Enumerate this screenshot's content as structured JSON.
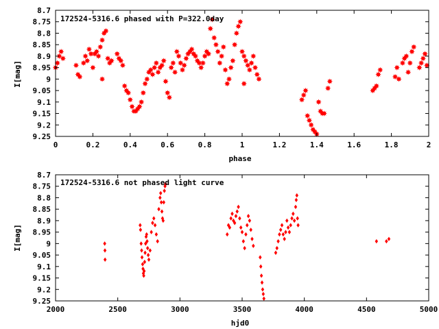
{
  "colors": {
    "series": "#ff0000",
    "axis": "#000000",
    "background": "#ffffff"
  },
  "chart_data": [
    {
      "type": "scatter",
      "title": "172524-5316.6 phased with P=322.0day",
      "xlabel": "phase",
      "ylabel": "I[mag]",
      "xlim": [
        0,
        2
      ],
      "ylim": [
        9.25,
        8.7
      ],
      "y_inverted": true,
      "grid": false,
      "marker": "star",
      "x_ticks": [
        "0",
        "0.2",
        "0.4",
        "0.6",
        "0.8",
        "1",
        "1.2",
        "1.4",
        "1.6",
        "1.8",
        "2"
      ],
      "y_ticks": [
        "8.7",
        "8.75",
        "8.8",
        "8.85",
        "8.9",
        "8.95",
        "9",
        "9.05",
        "9.1",
        "9.15",
        "9.2",
        "9.25"
      ],
      "series": [
        {
          "points": [
            [
              0.0,
              8.95
            ],
            [
              0.01,
              8.93
            ],
            [
              0.02,
              8.9
            ],
            [
              0.03,
              8.88
            ],
            [
              0.04,
              8.91
            ],
            [
              0.11,
              8.94
            ],
            [
              0.12,
              8.98
            ],
            [
              0.13,
              8.99
            ],
            [
              0.15,
              8.93
            ],
            [
              0.16,
              8.9
            ],
            [
              0.17,
              8.92
            ],
            [
              0.18,
              8.87
            ],
            [
              0.19,
              8.89
            ],
            [
              0.2,
              8.95
            ],
            [
              0.21,
              8.89
            ],
            [
              0.22,
              8.88
            ],
            [
              0.23,
              8.9
            ],
            [
              0.24,
              8.86
            ],
            [
              0.25,
              8.83
            ],
            [
              0.26,
              8.8
            ],
            [
              0.27,
              8.79
            ],
            [
              0.25,
              9.0
            ],
            [
              0.28,
              8.91
            ],
            [
              0.29,
              8.93
            ],
            [
              0.3,
              8.92
            ],
            [
              0.33,
              8.89
            ],
            [
              0.34,
              8.91
            ],
            [
              0.35,
              8.92
            ],
            [
              0.36,
              8.94
            ],
            [
              0.37,
              9.03
            ],
            [
              0.38,
              9.05
            ],
            [
              0.39,
              9.06
            ],
            [
              0.4,
              9.09
            ],
            [
              0.41,
              9.12
            ],
            [
              0.42,
              9.14
            ],
            [
              0.43,
              9.14
            ],
            [
              0.44,
              9.13
            ],
            [
              0.45,
              9.12
            ],
            [
              0.46,
              9.1
            ],
            [
              0.47,
              9.06
            ],
            [
              0.48,
              9.02
            ],
            [
              0.49,
              9.0
            ],
            [
              0.5,
              8.97
            ],
            [
              0.51,
              8.96
            ],
            [
              0.52,
              8.98
            ],
            [
              0.53,
              8.95
            ],
            [
              0.54,
              8.93
            ],
            [
              0.55,
              8.97
            ],
            [
              0.56,
              8.95
            ],
            [
              0.57,
              8.94
            ],
            [
              0.58,
              8.92
            ],
            [
              0.59,
              9.01
            ],
            [
              0.6,
              9.06
            ],
            [
              0.61,
              9.08
            ],
            [
              0.62,
              8.95
            ],
            [
              0.63,
              8.93
            ],
            [
              0.64,
              8.97
            ],
            [
              0.65,
              8.88
            ],
            [
              0.66,
              8.9
            ],
            [
              0.67,
              8.93
            ],
            [
              0.68,
              8.96
            ],
            [
              0.69,
              8.94
            ],
            [
              0.7,
              8.91
            ],
            [
              0.71,
              8.89
            ],
            [
              0.72,
              8.88
            ],
            [
              0.73,
              8.87
            ],
            [
              0.74,
              8.89
            ],
            [
              0.75,
              8.9
            ],
            [
              0.76,
              8.92
            ],
            [
              0.77,
              8.93
            ],
            [
              0.78,
              8.95
            ],
            [
              0.79,
              8.93
            ],
            [
              0.8,
              8.9
            ],
            [
              0.81,
              8.88
            ],
            [
              0.82,
              8.89
            ],
            [
              0.83,
              8.78
            ],
            [
              0.84,
              8.74
            ],
            [
              0.85,
              8.82
            ],
            [
              0.86,
              8.85
            ],
            [
              0.87,
              8.88
            ],
            [
              0.88,
              8.93
            ],
            [
              0.89,
              8.9
            ],
            [
              0.9,
              8.86
            ],
            [
              0.91,
              8.96
            ],
            [
              0.92,
              9.02
            ],
            [
              0.93,
              9.0
            ],
            [
              0.94,
              8.95
            ],
            [
              0.95,
              8.92
            ],
            [
              0.96,
              8.85
            ],
            [
              0.97,
              8.8
            ],
            [
              0.98,
              8.77
            ],
            [
              0.99,
              8.75
            ],
            [
              1.0,
              8.88
            ],
            [
              1.01,
              8.9
            ],
            [
              1.02,
              8.92
            ],
            [
              1.03,
              8.94
            ],
            [
              1.04,
              8.96
            ],
            [
              1.05,
              8.93
            ],
            [
              1.06,
              8.9
            ],
            [
              1.07,
              8.95
            ],
            [
              1.08,
              8.98
            ],
            [
              1.09,
              9.0
            ],
            [
              1.01,
              9.02
            ],
            [
              1.32,
              9.09
            ],
            [
              1.33,
              9.07
            ],
            [
              1.34,
              9.05
            ],
            [
              1.35,
              9.16
            ],
            [
              1.36,
              9.18
            ],
            [
              1.37,
              9.2
            ],
            [
              1.38,
              9.22
            ],
            [
              1.39,
              9.23
            ],
            [
              1.4,
              9.24
            ],
            [
              1.41,
              9.1
            ],
            [
              1.42,
              9.14
            ],
            [
              1.43,
              9.15
            ],
            [
              1.44,
              9.15
            ],
            [
              1.46,
              9.04
            ],
            [
              1.47,
              9.01
            ],
            [
              1.7,
              9.05
            ],
            [
              1.71,
              9.04
            ],
            [
              1.72,
              9.03
            ],
            [
              1.73,
              8.98
            ],
            [
              1.74,
              8.96
            ],
            [
              1.82,
              8.99
            ],
            [
              1.83,
              8.95
            ],
            [
              1.84,
              9.0
            ],
            [
              1.86,
              8.93
            ],
            [
              1.87,
              8.91
            ],
            [
              1.88,
              8.9
            ],
            [
              1.89,
              8.97
            ],
            [
              1.9,
              8.93
            ],
            [
              1.91,
              8.88
            ],
            [
              1.92,
              8.86
            ],
            [
              1.95,
              8.95
            ],
            [
              1.96,
              8.93
            ],
            [
              1.97,
              8.91
            ],
            [
              1.98,
              8.89
            ],
            [
              1.99,
              8.94
            ]
          ]
        }
      ]
    },
    {
      "type": "scatter",
      "title": "172524-5316.6 not phased light curve",
      "xlabel": "hjd0",
      "ylabel": "I[mag]",
      "xlim": [
        2000,
        5000
      ],
      "ylim": [
        9.25,
        8.7
      ],
      "y_inverted": true,
      "grid": false,
      "marker": "diamond",
      "x_ticks": [
        "2000",
        "2500",
        "3000",
        "3500",
        "4000",
        "4500",
        "5000"
      ],
      "y_ticks": [
        "8.7",
        "8.75",
        "8.8",
        "8.85",
        "8.9",
        "8.95",
        "9",
        "9.05",
        "9.1",
        "9.15",
        "9.2",
        "9.25"
      ],
      "series": [
        {
          "points": [
            [
              2395,
              9.0
            ],
            [
              2397,
              9.03
            ],
            [
              2398,
              9.07
            ],
            [
              2680,
              8.92
            ],
            [
              2683,
              8.94
            ],
            [
              2688,
              9.0
            ],
            [
              2692,
              9.03
            ],
            [
              2695,
              9.06
            ],
            [
              2700,
              9.09
            ],
            [
              2703,
              9.11
            ],
            [
              2706,
              9.13
            ],
            [
              2709,
              9.14
            ],
            [
              2712,
              9.12
            ],
            [
              2716,
              9.08
            ],
            [
              2720,
              9.04
            ],
            [
              2724,
              9.0
            ],
            [
              2728,
              8.97
            ],
            [
              2732,
              8.96
            ],
            [
              2736,
              8.99
            ],
            [
              2740,
              9.02
            ],
            [
              2745,
              9.05
            ],
            [
              2750,
              9.07
            ],
            [
              2760,
              9.03
            ],
            [
              2770,
              8.95
            ],
            [
              2780,
              8.91
            ],
            [
              2790,
              8.89
            ],
            [
              2800,
              8.92
            ],
            [
              2810,
              8.96
            ],
            [
              2820,
              8.99
            ],
            [
              2830,
              8.85
            ],
            [
              2840,
              8.8
            ],
            [
              2845,
              8.78
            ],
            [
              2850,
              8.82
            ],
            [
              2855,
              8.86
            ],
            [
              2860,
              8.89
            ],
            [
              2865,
              8.9
            ],
            [
              2870,
              8.82
            ],
            [
              2875,
              8.77
            ],
            [
              2880,
              8.75
            ],
            [
              2885,
              8.74
            ],
            [
              3380,
              8.96
            ],
            [
              3390,
              8.92
            ],
            [
              3400,
              8.93
            ],
            [
              3410,
              8.89
            ],
            [
              3420,
              8.87
            ],
            [
              3430,
              8.9
            ],
            [
              3440,
              8.91
            ],
            [
              3450,
              8.88
            ],
            [
              3460,
              8.86
            ],
            [
              3470,
              8.84
            ],
            [
              3480,
              8.89
            ],
            [
              3490,
              8.93
            ],
            [
              3500,
              8.95
            ],
            [
              3510,
              8.99
            ],
            [
              3520,
              9.02
            ],
            [
              3530,
              8.96
            ],
            [
              3540,
              8.92
            ],
            [
              3550,
              8.88
            ],
            [
              3560,
              8.9
            ],
            [
              3570,
              8.94
            ],
            [
              3580,
              8.98
            ],
            [
              3590,
              9.01
            ],
            [
              3645,
              9.06
            ],
            [
              3650,
              9.1
            ],
            [
              3655,
              9.14
            ],
            [
              3660,
              9.17
            ],
            [
              3665,
              9.2
            ],
            [
              3670,
              9.22
            ],
            [
              3675,
              9.24
            ],
            [
              3770,
              9.04
            ],
            [
              3780,
              9.02
            ],
            [
              3790,
              8.99
            ],
            [
              3800,
              8.96
            ],
            [
              3810,
              8.94
            ],
            [
              3820,
              8.92
            ],
            [
              3830,
              8.96
            ],
            [
              3840,
              8.98
            ],
            [
              3850,
              8.95
            ],
            [
              3860,
              8.9
            ],
            [
              3870,
              8.93
            ],
            [
              3880,
              8.95
            ],
            [
              3890,
              8.92
            ],
            [
              3900,
              8.89
            ],
            [
              3910,
              8.87
            ],
            [
              3920,
              8.9
            ],
            [
              3930,
              8.84
            ],
            [
              3935,
              8.81
            ],
            [
              3940,
              8.79
            ],
            [
              3945,
              8.89
            ],
            [
              3950,
              8.92
            ],
            [
              4580,
              8.99
            ],
            [
              4660,
              8.99
            ],
            [
              4680,
              8.98
            ]
          ]
        }
      ]
    }
  ]
}
